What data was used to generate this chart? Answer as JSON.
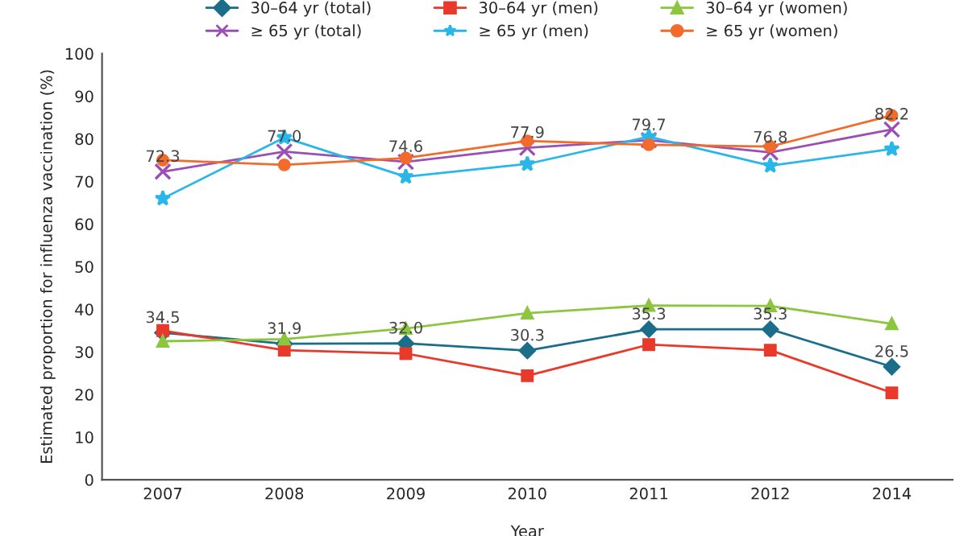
{
  "chart_data": {
    "type": "line",
    "xlabel": "Year",
    "ylabel": "Estimated proportion for influenza vaccination (%)",
    "categories": [
      "2007",
      "2008",
      "2009",
      "2010",
      "2011",
      "2012",
      "2014"
    ],
    "ylim": [
      0,
      100
    ],
    "yticks": [
      0,
      10,
      20,
      30,
      40,
      50,
      60,
      70,
      80,
      90,
      100
    ],
    "grid": false,
    "legend": "top",
    "series": [
      {
        "name": "30–64 yr (total)",
        "color": "#1a6e8a",
        "marker": "diamond",
        "values": [
          34.5,
          31.9,
          32.0,
          30.3,
          35.3,
          35.3,
          26.5
        ],
        "value_labels": [
          "34.5",
          "31.9",
          "32.0",
          "30.3",
          "35.3",
          "35.3",
          "26.5"
        ]
      },
      {
        "name": "30–64 yr (men)",
        "color": "#e8392b",
        "marker": "square",
        "values": [
          35.0,
          30.4,
          29.6,
          24.4,
          31.7,
          30.4,
          20.4
        ]
      },
      {
        "name": "30–64 yr (women)",
        "color": "#8cc63f",
        "marker": "triangle",
        "values": [
          32.5,
          33.0,
          35.5,
          39.1,
          40.9,
          40.8,
          36.6
        ]
      },
      {
        "name": "≥ 65 yr (total)",
        "color": "#9b4fb5",
        "marker": "cross",
        "values": [
          72.3,
          77.0,
          74.6,
          77.9,
          79.7,
          76.8,
          82.2
        ],
        "value_labels": [
          "72.3",
          "77.0",
          "74.6",
          "77.9",
          "79.7",
          "76.8",
          "82.2"
        ]
      },
      {
        "name": "≥ 65 yr (men)",
        "color": "#29b6e8",
        "marker": "star",
        "values": [
          66.0,
          80.3,
          71.1,
          74.1,
          80.5,
          73.7,
          77.6
        ]
      },
      {
        "name": "≥ 65 yr (women)",
        "color": "#f26b2a",
        "marker": "circle",
        "values": [
          75.0,
          73.9,
          75.5,
          79.5,
          78.6,
          78.2,
          85.5
        ]
      }
    ]
  }
}
